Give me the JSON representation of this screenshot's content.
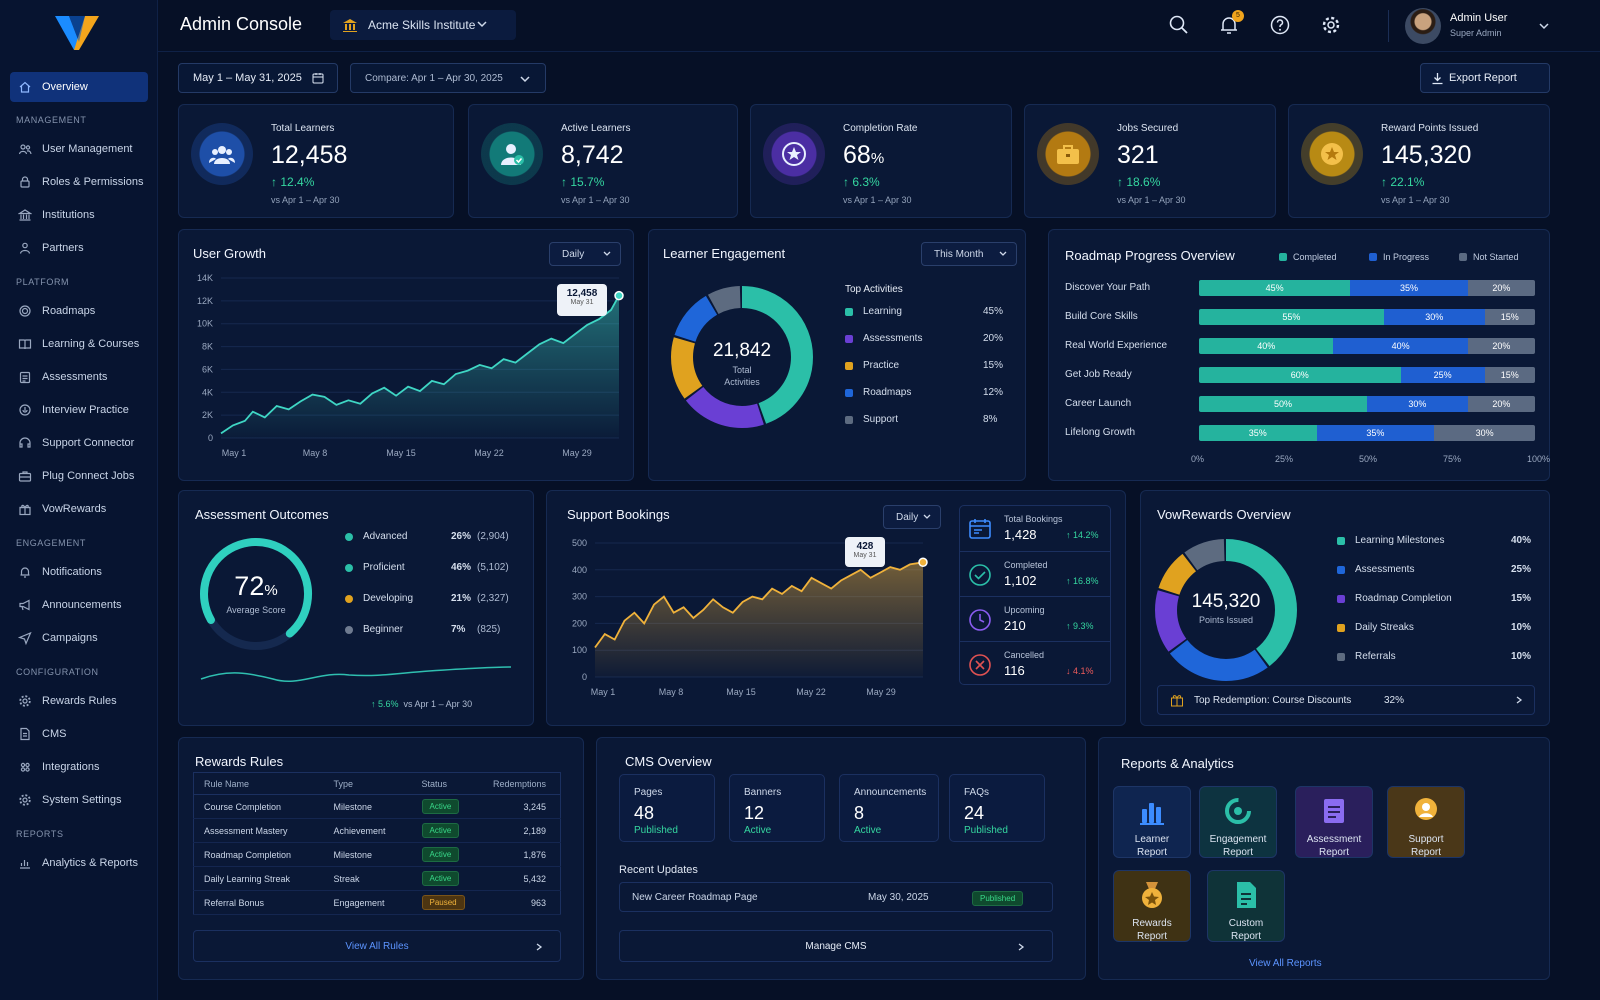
{
  "app": {
    "title": "Admin Console",
    "institution": "Acme Skills Institute",
    "notif_count": "5"
  },
  "user": {
    "name": "Admin User",
    "role": "Super Admin"
  },
  "sidebar": {
    "active": "Overview",
    "sections": [
      {
        "title": "",
        "items": [
          {
            "label": "Overview",
            "icon": "home-icon"
          }
        ]
      },
      {
        "title": "MANAGEMENT",
        "items": [
          {
            "label": "User Management",
            "icon": "users-icon"
          },
          {
            "label": "Roles & Permissions",
            "icon": "lock-icon"
          },
          {
            "label": "Institutions",
            "icon": "building-icon"
          },
          {
            "label": "Partners",
            "icon": "partner-icon"
          }
        ]
      },
      {
        "title": "PLATFORM",
        "items": [
          {
            "label": "Roadmaps",
            "icon": "target-icon"
          },
          {
            "label": "Learning & Courses",
            "icon": "book-icon"
          },
          {
            "label": "Assessments",
            "icon": "clipboard-icon"
          },
          {
            "label": "Interview Practice",
            "icon": "mic-icon"
          },
          {
            "label": "Support Connector",
            "icon": "headset-icon"
          },
          {
            "label": "Plug Connect Jobs",
            "icon": "briefcase-icon"
          },
          {
            "label": "VowRewards",
            "icon": "gift-icon"
          }
        ]
      },
      {
        "title": "ENGAGEMENT",
        "items": [
          {
            "label": "Notifications",
            "icon": "bell-icon"
          },
          {
            "label": "Announcements",
            "icon": "megaphone-icon"
          },
          {
            "label": "Campaigns",
            "icon": "send-icon"
          }
        ]
      },
      {
        "title": "CONFIGURATION",
        "items": [
          {
            "label": "Rewards Rules",
            "icon": "gear-icon"
          },
          {
            "label": "CMS",
            "icon": "document-icon"
          },
          {
            "label": "Integrations",
            "icon": "puzzle-icon"
          },
          {
            "label": "System Settings",
            "icon": "gear-icon"
          }
        ]
      },
      {
        "title": "REPORTS",
        "items": [
          {
            "label": "Analytics & Reports",
            "icon": "chart-icon"
          }
        ]
      }
    ]
  },
  "filters": {
    "date_range": "May 1 – May 31, 2025",
    "compare": "Compare:  Apr 1 – Apr 30, 2025",
    "export": "Export Report"
  },
  "kpis": [
    {
      "label": "Total Learners",
      "value": "12,458",
      "suffix": "",
      "delta": "12.4%",
      "vs": "vs Apr 1 – Apr 30",
      "color": "#1e4fa8",
      "icon": "users-icon"
    },
    {
      "label": "Active Learners",
      "value": "8,742",
      "suffix": "",
      "delta": "15.7%",
      "vs": "vs Apr 1 – Apr 30",
      "color": "#127a78",
      "icon": "user-check-icon"
    },
    {
      "label": "Completion Rate",
      "value": "68",
      "suffix": "%",
      "delta": "6.3%",
      "vs": "vs Apr 1 – Apr 30",
      "color": "#4b2ea3",
      "icon": "star-badge-icon"
    },
    {
      "label": "Jobs Secured",
      "value": "321",
      "suffix": "",
      "delta": "18.6%",
      "vs": "vs Apr 1 – Apr 30",
      "color": "#b37a12",
      "icon": "briefcase-icon"
    },
    {
      "label": "Reward Points Issued",
      "value": "145,320",
      "suffix": "",
      "delta": "22.1%",
      "vs": "vs Apr 1 – Apr 30",
      "color": "#b88a14",
      "icon": "coin-icon"
    }
  ],
  "user_growth": {
    "title": "User Growth",
    "period": "Daily",
    "tooltip_value": "12,458",
    "tooltip_date": "May 31",
    "yticks": [
      "14K",
      "12K",
      "10K",
      "8K",
      "6K",
      "4K",
      "2K",
      "0"
    ],
    "xticks": [
      "May 1",
      "May 8",
      "May 15",
      "May 22",
      "May 29"
    ]
  },
  "engagement": {
    "title": "Learner Engagement",
    "period": "This Month",
    "total": "21,842",
    "total_label": "Total\nActivities",
    "list_title": "Top Activities",
    "items": [
      {
        "label": "Learning",
        "pct": "45%",
        "value": 45,
        "color": "#2bbfa8"
      },
      {
        "label": "Assessments",
        "pct": "20%",
        "value": 20,
        "color": "#6a3fd4"
      },
      {
        "label": "Practice",
        "pct": "15%",
        "value": 15,
        "color": "#e0a21f"
      },
      {
        "label": "Roadmaps",
        "pct": "12%",
        "value": 12,
        "color": "#1f66d9"
      },
      {
        "label": "Support",
        "pct": "8%",
        "value": 8,
        "color": "#5d6b80"
      }
    ]
  },
  "roadmap": {
    "title": "Roadmap Progress Overview",
    "legend": [
      "Completed",
      "In Progress",
      "Not Started"
    ],
    "rows": [
      {
        "label": "Discover Your Path",
        "c": 45,
        "p": 35,
        "n": 20
      },
      {
        "label": "Build Core Skills",
        "c": 55,
        "p": 30,
        "n": 15
      },
      {
        "label": "Real World Experience",
        "c": 40,
        "p": 40,
        "n": 20
      },
      {
        "label": "Get Job Ready",
        "c": 60,
        "p": 25,
        "n": 15
      },
      {
        "label": "Career Launch",
        "c": 50,
        "p": 30,
        "n": 20
      },
      {
        "label": "Lifelong Growth",
        "c": 35,
        "p": 35,
        "n": 30
      }
    ],
    "xticks": [
      "0%",
      "25%",
      "50%",
      "75%",
      "100%"
    ]
  },
  "assessment": {
    "title": "Assessment Outcomes",
    "score": "72",
    "score_unit": "%",
    "score_label": "Average Score",
    "score_value": 72,
    "items": [
      {
        "label": "Advanced",
        "pct": "26%",
        "count": "(2,904)",
        "color": "#2bbfa8"
      },
      {
        "label": "Proficient",
        "pct": "46%",
        "count": "(5,102)",
        "color": "#2bbfa8"
      },
      {
        "label": "Developing",
        "pct": "21%",
        "count": "(2,327)",
        "color": "#e0a21f"
      },
      {
        "label": "Beginner",
        "pct": "7%",
        "count": "(825)",
        "color": "#6f7b90"
      }
    ],
    "delta": "5.6%",
    "vs": "vs Apr 1 – Apr 30"
  },
  "support": {
    "title": "Support Bookings",
    "period": "Daily",
    "tooltip_value": "428",
    "tooltip_date": "May 31",
    "yticks": [
      "500",
      "400",
      "300",
      "200",
      "100",
      "0"
    ],
    "xticks": [
      "May 1",
      "May 8",
      "May 15",
      "May 22",
      "May 29"
    ],
    "stats": [
      {
        "label": "Total Bookings",
        "value": "1,428",
        "delta": "14.2%",
        "up": true,
        "icon": "calendar-icon",
        "color": "#3c8cff"
      },
      {
        "label": "Completed",
        "value": "1,102",
        "delta": "16.8%",
        "up": true,
        "icon": "check-circle-icon",
        "color": "#2bbfa8"
      },
      {
        "label": "Upcoming",
        "value": "210",
        "delta": "9.3%",
        "up": true,
        "icon": "clock-icon",
        "color": "#8a5cf0"
      },
      {
        "label": "Cancelled",
        "value": "116",
        "delta": "4.1%",
        "up": false,
        "icon": "x-circle-icon",
        "color": "#e05252"
      }
    ]
  },
  "vow": {
    "title": "VowRewards Overview",
    "total": "145,320",
    "total_label": "Points Issued",
    "items": [
      {
        "label": "Learning Milestones",
        "pct": "40%",
        "value": 40,
        "color": "#2bbfa8"
      },
      {
        "label": "Assessments",
        "pct": "25%",
        "value": 25,
        "color": "#1f66d9"
      },
      {
        "label": "Roadmap Completion",
        "pct": "15%",
        "value": 15,
        "color": "#6a3fd4"
      },
      {
        "label": "Daily Streaks",
        "pct": "10%",
        "value": 10,
        "color": "#e0a21f"
      },
      {
        "label": "Referrals",
        "pct": "10%",
        "value": 10,
        "color": "#5d6b80"
      }
    ],
    "top_label": "Top Redemption: Course Discounts",
    "top_pct": "32%"
  },
  "rules": {
    "title": "Rewards Rules",
    "headers": [
      "Rule Name",
      "Type",
      "Status",
      "Redemptions"
    ],
    "rows": [
      {
        "name": "Course Completion",
        "type": "Milestone",
        "status": "Active",
        "red": "3,245"
      },
      {
        "name": "Assessment Mastery",
        "type": "Achievement",
        "status": "Active",
        "red": "2,189"
      },
      {
        "name": "Roadmap Completion",
        "type": "Milestone",
        "status": "Active",
        "red": "1,876"
      },
      {
        "name": "Daily Learning Streak",
        "type": "Streak",
        "status": "Active",
        "red": "5,432"
      },
      {
        "name": "Referral Bonus",
        "type": "Engagement",
        "status": "Paused",
        "red": "963"
      }
    ],
    "view_all": "View All Rules"
  },
  "cms": {
    "title": "CMS Overview",
    "tiles": [
      {
        "label": "Pages",
        "value": "48",
        "status": "Published"
      },
      {
        "label": "Banners",
        "value": "12",
        "status": "Active"
      },
      {
        "label": "Announcements",
        "value": "8",
        "status": "Active"
      },
      {
        "label": "FAQs",
        "value": "24",
        "status": "Published"
      }
    ],
    "recent_title": "Recent Updates",
    "recent": {
      "name": "New Career Roadmap Page",
      "date": "May 30, 2025",
      "status": "Published"
    },
    "manage": "Manage CMS"
  },
  "reports": {
    "title": "Reports & Analytics",
    "items": [
      {
        "line1": "Learner",
        "line2": "Report",
        "color": "#0f2550",
        "icon": "bar-chart-icon"
      },
      {
        "line1": "Engagement",
        "line2": "Report",
        "color": "#0d3340",
        "icon": "gauge-icon"
      },
      {
        "line1": "Assessment",
        "line2": "Report",
        "color": "#2a1f5c",
        "icon": "document-icon"
      },
      {
        "line1": "Support",
        "line2": "Report",
        "color": "#4a3718",
        "icon": "support-icon"
      },
      {
        "line1": "Rewards",
        "line2": "Report",
        "color": "#3f3214",
        "icon": "medal-icon"
      },
      {
        "line1": "Custom",
        "line2": "Report",
        "color": "#0f3338",
        "icon": "custom-report-icon"
      }
    ],
    "view_all": "View All Reports"
  },
  "chart_data": [
    {
      "type": "area",
      "title": "User Growth",
      "x": [
        "May 1",
        "May 8",
        "May 15",
        "May 22",
        "May 29",
        "May 31"
      ],
      "values": [
        400,
        3800,
        4400,
        6400,
        8700,
        12458
      ],
      "ylim": [
        0,
        14000
      ]
    },
    {
      "type": "pie",
      "title": "Learner Engagement",
      "categories": [
        "Learning",
        "Assessments",
        "Practice",
        "Roadmaps",
        "Support"
      ],
      "values": [
        45,
        20,
        15,
        12,
        8
      ]
    },
    {
      "type": "bar",
      "title": "Roadmap Progress Overview",
      "categories": [
        "Discover Your Path",
        "Build Core Skills",
        "Real World Experience",
        "Get Job Ready",
        "Career Launch",
        "Lifelong Growth"
      ],
      "series": [
        {
          "name": "Completed",
          "values": [
            45,
            55,
            40,
            60,
            50,
            35
          ]
        },
        {
          "name": "In Progress",
          "values": [
            35,
            30,
            40,
            25,
            30,
            35
          ]
        },
        {
          "name": "Not Started",
          "values": [
            20,
            15,
            20,
            15,
            20,
            30
          ]
        }
      ]
    },
    {
      "type": "area",
      "title": "Support Bookings",
      "x": [
        "May 1",
        "May 8",
        "May 15",
        "May 22",
        "May 29",
        "May 31"
      ],
      "values": [
        110,
        280,
        250,
        330,
        370,
        428
      ],
      "ylim": [
        0,
        500
      ]
    },
    {
      "type": "pie",
      "title": "VowRewards Overview",
      "categories": [
        "Learning Milestones",
        "Assessments",
        "Roadmap Completion",
        "Daily Streaks",
        "Referrals"
      ],
      "values": [
        40,
        25,
        15,
        10,
        10
      ]
    }
  ]
}
